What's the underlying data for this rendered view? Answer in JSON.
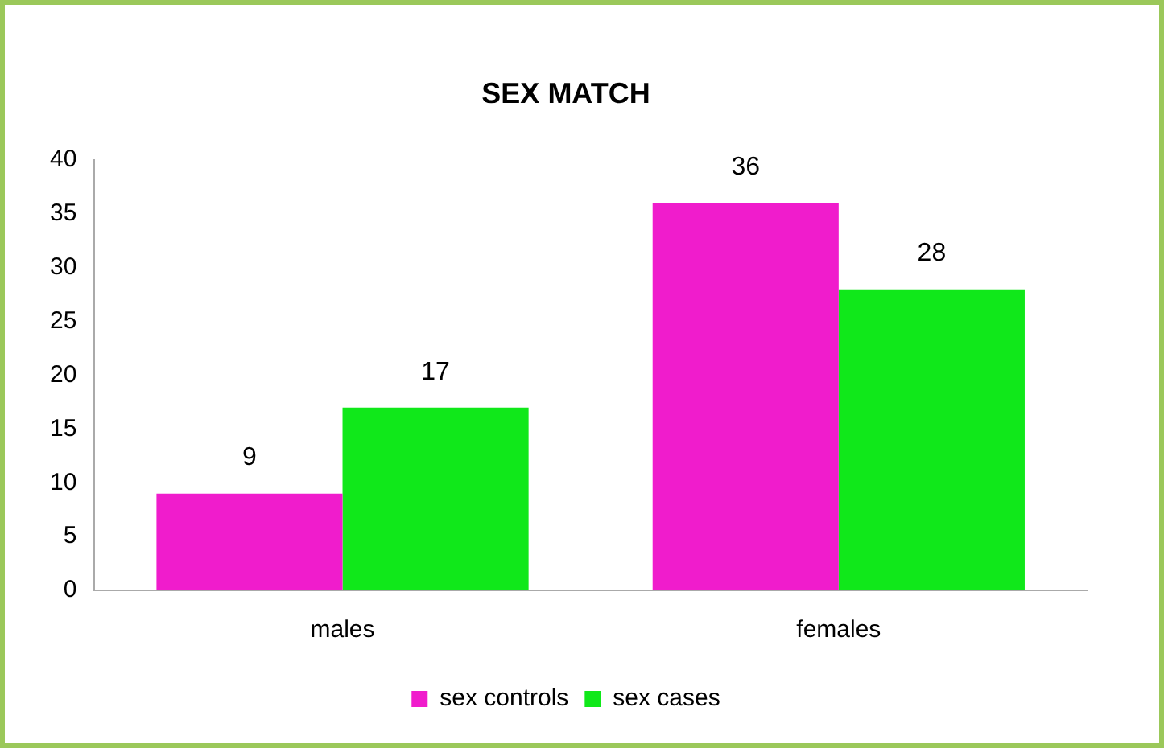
{
  "chart_data": {
    "type": "bar",
    "title": "SEX MATCH",
    "categories": [
      "males",
      "females"
    ],
    "series": [
      {
        "name": "sex controls",
        "color": "#f01ccc",
        "values": [
          9,
          36
        ]
      },
      {
        "name": "sex cases",
        "color": "#10e81a",
        "values": [
          17,
          28
        ]
      }
    ],
    "ylim": [
      0,
      40
    ],
    "yticks": [
      0,
      5,
      10,
      15,
      20,
      25,
      30,
      35,
      40
    ],
    "grid": false,
    "legend": "bottom",
    "data_labels": true
  }
}
